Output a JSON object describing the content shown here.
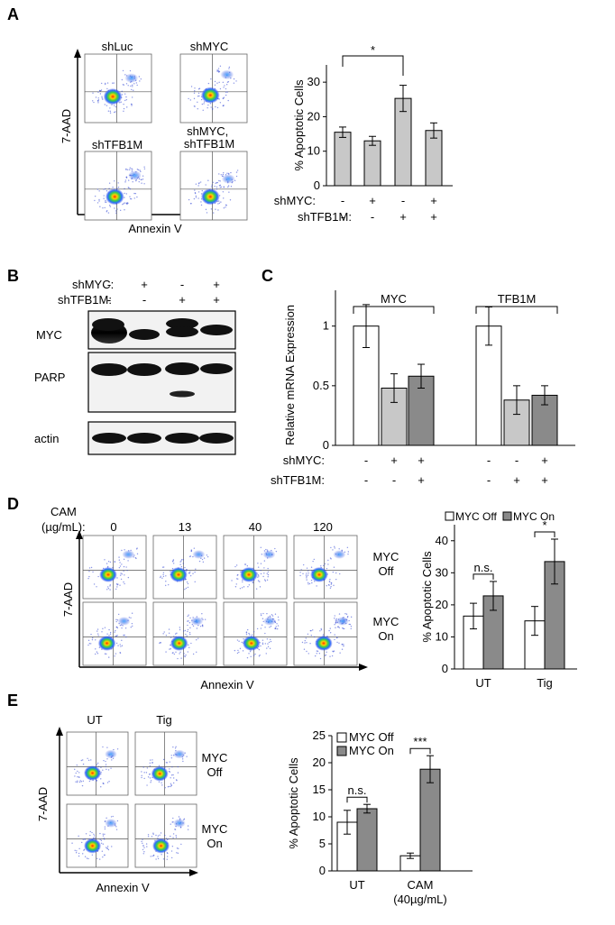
{
  "panels": {
    "A": {
      "letter": "A",
      "flow": {
        "y_axis": "7-AAD",
        "x_axis": "Annexin V",
        "plots": [
          {
            "label": "shLuc"
          },
          {
            "label": "shMYC"
          },
          {
            "label": "shTFB1M"
          },
          {
            "label": "shMYC,\nshTFB1M"
          }
        ]
      }
    },
    "B": {
      "letter": "B",
      "row_labels": [
        "shMYC:",
        "shTFB1M:"
      ],
      "treatment": [
        [
          "-",
          "+",
          "-",
          "+"
        ],
        [
          "-",
          "-",
          "+",
          "+"
        ]
      ],
      "blots": [
        "MYC",
        "PARP",
        "actin"
      ]
    },
    "C": {
      "letter": "C"
    },
    "D": {
      "letter": "D",
      "cam_label": "CAM",
      "cam_unit": "(µg/mL):",
      "cam_doses": [
        "0",
        "13",
        "40",
        "120"
      ],
      "row_labels": [
        "MYC\nOff",
        "MYC\nOn"
      ],
      "y_axis": "7-AAD",
      "x_axis": "Annexin V"
    },
    "E": {
      "letter": "E",
      "col_labels": [
        "UT",
        "Tig"
      ],
      "row_labels": [
        "MYC\nOff",
        "MYC\nOn"
      ],
      "y_axis": "7-AAD",
      "x_axis": "Annexin V"
    }
  },
  "chart_data": [
    {
      "panel": "A",
      "type": "bar",
      "ylabel": "% Apoptotic Cells",
      "ylim": [
        0,
        35
      ],
      "yticks": [
        0,
        10,
        20,
        30
      ],
      "values": [
        15.5,
        13.0,
        25.3,
        16.0
      ],
      "errors": [
        1.5,
        1.3,
        3.8,
        2.2
      ],
      "bar_color": "#c8c8c8",
      "factors": [
        {
          "label": "shMYC:",
          "signs": [
            "-",
            "+",
            "-",
            "+"
          ]
        },
        {
          "label": "shTFB1M:",
          "signs": [
            "-",
            "-",
            "+",
            "+"
          ]
        }
      ],
      "annotations": [
        {
          "from": 0,
          "to": 2,
          "text": "*"
        }
      ]
    },
    {
      "panel": "C",
      "type": "bar",
      "ylabel": "Relative mRNA Expression",
      "ylim": [
        0,
        1.3
      ],
      "yticks": [
        0,
        0.5,
        1
      ],
      "groups": [
        {
          "name": "MYC",
          "values": [
            1.0,
            0.48,
            0.58
          ],
          "errors": [
            0.18,
            0.12,
            0.1
          ]
        },
        {
          "name": "TFB1M",
          "values": [
            1.0,
            0.38,
            0.42
          ],
          "errors": [
            0.16,
            0.12,
            0.08
          ]
        }
      ],
      "bar_colors": [
        "#ffffff",
        "#c8c8c8",
        "#8a8a8a"
      ],
      "factors": [
        {
          "label": "shMYC:",
          "signs": [
            "-",
            "+",
            "+",
            "-",
            "-",
            "+"
          ]
        },
        {
          "label": "shTFB1M:",
          "signs": [
            "-",
            "-",
            "+",
            "-",
            "+",
            "+"
          ]
        }
      ]
    },
    {
      "panel": "D",
      "type": "bar",
      "ylabel": "% Apoptotic Cells",
      "ylim": [
        0,
        45
      ],
      "yticks": [
        0,
        10,
        20,
        30,
        40
      ],
      "categories": [
        "UT",
        "Tig"
      ],
      "series": [
        {
          "name": "MYC Off",
          "values": [
            16.5,
            15.0
          ],
          "errors": [
            4.0,
            4.5
          ],
          "color": "#ffffff"
        },
        {
          "name": "MYC On",
          "values": [
            22.8,
            33.5
          ],
          "errors": [
            4.5,
            7.0
          ],
          "color": "#8a8a8a"
        }
      ],
      "legend": "top",
      "annotations": [
        {
          "category": 0,
          "text": "n.s."
        },
        {
          "category": 1,
          "text": "*"
        }
      ]
    },
    {
      "panel": "E",
      "type": "bar",
      "ylabel": "% Apoptotic Cells",
      "ylim": [
        0,
        25
      ],
      "yticks": [
        0,
        5,
        10,
        15,
        20,
        25
      ],
      "categories": [
        "UT",
        "CAM\n(40µg/mL)"
      ],
      "series": [
        {
          "name": "MYC Off",
          "values": [
            9.0,
            2.8
          ],
          "errors": [
            2.2,
            0.5
          ],
          "color": "#ffffff"
        },
        {
          "name": "MYC On",
          "values": [
            11.5,
            18.8
          ],
          "errors": [
            0.8,
            2.5
          ],
          "color": "#8a8a8a"
        }
      ],
      "legend": "top-left",
      "annotations": [
        {
          "category": 0,
          "text": "n.s."
        },
        {
          "category": 1,
          "text": "***"
        }
      ]
    }
  ]
}
